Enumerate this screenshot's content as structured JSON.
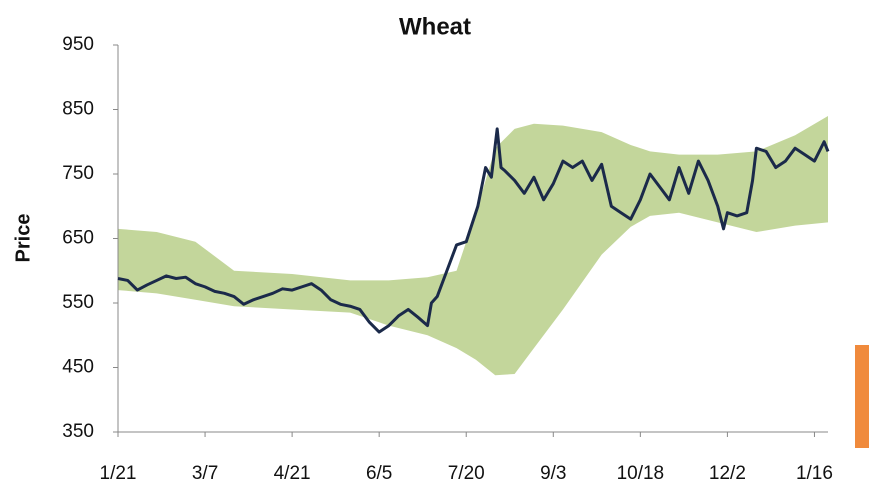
{
  "chart_data": {
    "type": "line",
    "title": "Wheat",
    "y_label": "Price",
    "x": [
      0,
      5,
      10,
      15,
      20,
      25,
      30,
      35,
      40,
      45,
      50,
      55,
      60,
      65,
      70,
      75,
      80,
      85,
      90,
      95,
      100,
      105,
      110,
      115,
      120,
      125,
      130,
      135,
      140,
      145,
      150,
      155,
      160,
      162,
      165,
      170,
      175,
      180,
      186,
      190,
      193,
      196,
      198,
      200,
      205,
      210,
      215,
      220,
      225,
      230,
      235,
      240,
      245,
      250,
      255,
      260,
      265,
      270,
      275,
      280,
      285,
      290,
      295,
      300,
      305,
      310,
      313,
      315,
      320,
      325,
      328,
      330,
      335,
      340,
      345,
      350,
      355,
      360,
      365,
      367
    ],
    "series": [
      {
        "color": "#1b2a4a",
        "values": [
          588,
          585,
          570,
          578,
          585,
          592,
          588,
          590,
          580,
          575,
          568,
          565,
          560,
          548,
          555,
          560,
          565,
          572,
          570,
          575,
          580,
          570,
          555,
          548,
          545,
          540,
          520,
          505,
          515,
          530,
          540,
          528,
          515,
          550,
          560,
          600,
          640,
          645,
          700,
          760,
          745,
          820,
          760,
          755,
          740,
          720,
          745,
          710,
          735,
          770,
          760,
          770,
          740,
          765,
          700,
          690,
          680,
          710,
          750,
          730,
          710,
          760,
          720,
          770,
          740,
          700,
          665,
          690,
          685,
          690,
          740,
          790,
          785,
          760,
          770,
          790,
          780,
          770,
          800,
          785
        ]
      }
    ],
    "band": {
      "color": "#c3d69b",
      "x": [
        0,
        20,
        40,
        60,
        90,
        120,
        140,
        160,
        175,
        185,
        195,
        205,
        215,
        230,
        250,
        265,
        275,
        290,
        310,
        330,
        350,
        367
      ],
      "upper": [
        665,
        660,
        645,
        600,
        595,
        585,
        585,
        590,
        600,
        690,
        790,
        820,
        828,
        825,
        815,
        795,
        785,
        780,
        780,
        785,
        810,
        840
      ],
      "lower": [
        570,
        565,
        555,
        545,
        540,
        535,
        515,
        500,
        480,
        462,
        438,
        440,
        480,
        540,
        625,
        668,
        685,
        690,
        675,
        660,
        670,
        675
      ]
    },
    "xlim": [
      0,
      367
    ],
    "ylim": [
      350,
      950
    ],
    "xticks": [
      {
        "value": 0,
        "label": "1/21"
      },
      {
        "value": 45,
        "label": "3/7"
      },
      {
        "value": 90,
        "label": "4/21"
      },
      {
        "value": 135,
        "label": "6/5"
      },
      {
        "value": 180,
        "label": "7/20"
      },
      {
        "value": 225,
        "label": "9/3"
      },
      {
        "value": 270,
        "label": "10/18"
      },
      {
        "value": 315,
        "label": "12/2"
      },
      {
        "value": 360,
        "label": "1/16"
      }
    ],
    "yticks": [
      350,
      450,
      550,
      650,
      750,
      850,
      950
    ],
    "grid": false
  }
}
